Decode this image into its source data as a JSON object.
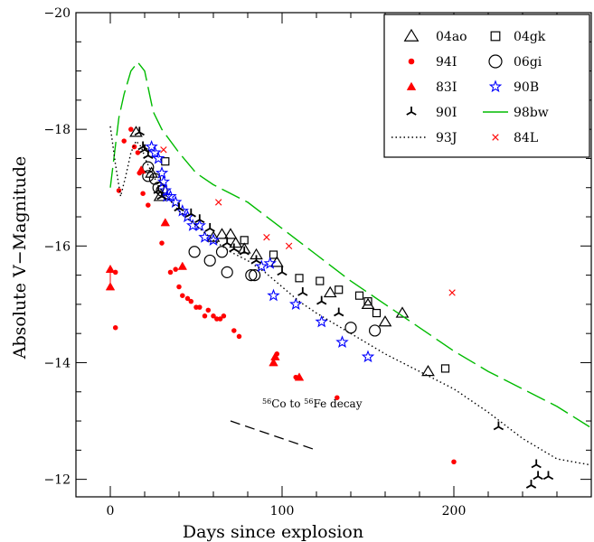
{
  "chart_data": {
    "type": "scatter",
    "xlabel": "Days since explosion",
    "ylabel": "Absolute V−Magnitude",
    "xlim": [
      -20,
      280
    ],
    "ylim": [
      -11.7,
      -20
    ],
    "y_inverted": true,
    "x_ticks": [
      0,
      100,
      200
    ],
    "x_tick_labels": [
      "0",
      "100",
      "200"
    ],
    "y_ticks": [
      -20,
      -18,
      -16,
      -14,
      -12
    ],
    "y_tick_labels": [
      "−20",
      "−18",
      "−16",
      "−14",
      "−12"
    ],
    "legend_position": "top-right",
    "annotation": {
      "text_parts": [
        "56",
        "Co to ",
        "56",
        "Fe decay"
      ],
      "x": 70,
      "y": -13.05,
      "line": [
        [
          70,
          -13.0
        ],
        [
          120,
          -12.5
        ]
      ]
    },
    "series": [
      {
        "name": "04ao",
        "marker": "triangle",
        "color": "#000000",
        "points": [
          [
            15,
            -17.95
          ],
          [
            24,
            -17.25
          ],
          [
            29,
            -16.85
          ],
          [
            60,
            -16.15
          ],
          [
            65,
            -16.2
          ],
          [
            70,
            -16.2
          ],
          [
            73,
            -16.05
          ],
          [
            78,
            -15.95
          ],
          [
            85,
            -15.85
          ],
          [
            97,
            -15.72
          ],
          [
            128,
            -15.2
          ],
          [
            150,
            -15.0
          ],
          [
            160,
            -14.7
          ],
          [
            170,
            -14.85
          ],
          [
            185,
            -13.85
          ]
        ]
      },
      {
        "name": "04gk",
        "marker": "square",
        "color": "#000000",
        "points": [
          [
            32,
            -17.45
          ],
          [
            78,
            -16.1
          ],
          [
            95,
            -15.85
          ],
          [
            110,
            -15.45
          ],
          [
            122,
            -15.4
          ],
          [
            133,
            -15.25
          ],
          [
            145,
            -15.15
          ],
          [
            150,
            -15.05
          ],
          [
            155,
            -14.85
          ],
          [
            195,
            -13.9
          ]
        ]
      },
      {
        "name": "94I",
        "marker": "dot",
        "color": "#ff0000",
        "points": [
          [
            3,
            -15.55
          ],
          [
            3,
            -14.6
          ],
          [
            5,
            -16.95
          ],
          [
            8,
            -17.8
          ],
          [
            12,
            -18.0
          ],
          [
            14,
            -17.7
          ],
          [
            16,
            -17.6
          ],
          [
            17,
            -17.25
          ],
          [
            19,
            -16.9
          ],
          [
            22,
            -16.7
          ],
          [
            30,
            -16.05
          ],
          [
            35,
            -15.55
          ],
          [
            38,
            -15.6
          ],
          [
            40,
            -15.3
          ],
          [
            42,
            -15.15
          ],
          [
            45,
            -15.1
          ],
          [
            47,
            -15.05
          ],
          [
            50,
            -14.95
          ],
          [
            52,
            -14.95
          ],
          [
            55,
            -14.8
          ],
          [
            57,
            -14.9
          ],
          [
            60,
            -14.8
          ],
          [
            62,
            -14.75
          ],
          [
            64,
            -14.75
          ],
          [
            66,
            -14.8
          ],
          [
            72,
            -14.55
          ],
          [
            75,
            -14.45
          ],
          [
            97,
            -14.15
          ],
          [
            108,
            -13.75
          ],
          [
            132,
            -13.4
          ],
          [
            200,
            -12.3
          ]
        ]
      },
      {
        "name": "06gi",
        "marker": "circle",
        "color": "#000000",
        "points": [
          [
            22,
            -17.2
          ],
          [
            22,
            -17.35
          ],
          [
            26,
            -17.15
          ],
          [
            28,
            -17.0
          ],
          [
            30,
            -16.95
          ],
          [
            49,
            -15.9
          ],
          [
            58,
            -15.75
          ],
          [
            65,
            -15.9
          ],
          [
            68,
            -15.55
          ],
          [
            82,
            -15.5
          ],
          [
            84,
            -15.5
          ],
          [
            140,
            -14.6
          ],
          [
            154,
            -14.55
          ]
        ]
      },
      {
        "name": "83I",
        "marker": "filled-triangle",
        "color": "#ff0000",
        "points": [
          [
            0,
            -15.6
          ],
          [
            0,
            -15.3
          ],
          [
            18,
            -17.3
          ],
          [
            32,
            -16.4
          ],
          [
            42,
            -15.65
          ],
          [
            95,
            -14.0
          ],
          [
            96,
            -14.1
          ],
          [
            110,
            -13.75
          ]
        ]
      },
      {
        "name": "90B",
        "marker": "star",
        "color": "#0000ff",
        "points": [
          [
            24,
            -17.7
          ],
          [
            26,
            -17.6
          ],
          [
            28,
            -17.5
          ],
          [
            30,
            -17.25
          ],
          [
            31,
            -17.1
          ],
          [
            32,
            -16.95
          ],
          [
            33,
            -16.85
          ],
          [
            35,
            -16.85
          ],
          [
            38,
            -16.75
          ],
          [
            42,
            -16.6
          ],
          [
            45,
            -16.5
          ],
          [
            48,
            -16.35
          ],
          [
            52,
            -16.35
          ],
          [
            55,
            -16.15
          ],
          [
            60,
            -16.1
          ],
          [
            88,
            -15.65
          ],
          [
            93,
            -15.7
          ],
          [
            95,
            -15.15
          ],
          [
            108,
            -15.0
          ],
          [
            123,
            -14.7
          ],
          [
            135,
            -14.35
          ],
          [
            150,
            -14.1
          ]
        ]
      },
      {
        "name": "90I",
        "marker": "tri",
        "color": "#000000",
        "points": [
          [
            17,
            -17.95
          ],
          [
            19,
            -17.7
          ],
          [
            20,
            -17.65
          ],
          [
            22,
            -17.55
          ],
          [
            28,
            -16.95
          ],
          [
            30,
            -16.85
          ],
          [
            40,
            -16.65
          ],
          [
            47,
            -16.55
          ],
          [
            52,
            -16.45
          ],
          [
            58,
            -16.3
          ],
          [
            68,
            -16.05
          ],
          [
            72,
            -15.95
          ],
          [
            78,
            -15.9
          ],
          [
            85,
            -15.75
          ],
          [
            100,
            -15.55
          ],
          [
            112,
            -15.2
          ],
          [
            123,
            -15.05
          ],
          [
            133,
            -14.85
          ],
          [
            226,
            -12.9
          ],
          [
            245,
            -11.9
          ],
          [
            248,
            -12.25
          ],
          [
            249,
            -12.05
          ],
          [
            255,
            -12.05
          ]
        ]
      },
      {
        "name": "98bw",
        "marker": "dashed-line",
        "color": "#00bb00",
        "points": [
          [
            0,
            -17.0
          ],
          [
            5,
            -18.2
          ],
          [
            8,
            -18.6
          ],
          [
            12,
            -19.0
          ],
          [
            16,
            -19.15
          ],
          [
            20,
            -19.0
          ],
          [
            25,
            -18.3
          ],
          [
            30,
            -18.0
          ],
          [
            40,
            -17.6
          ],
          [
            50,
            -17.25
          ],
          [
            60,
            -17.05
          ],
          [
            80,
            -16.75
          ],
          [
            100,
            -16.3
          ],
          [
            120,
            -15.85
          ],
          [
            140,
            -15.4
          ],
          [
            160,
            -15.0
          ],
          [
            180,
            -14.6
          ],
          [
            200,
            -14.2
          ],
          [
            220,
            -13.85
          ],
          [
            240,
            -13.55
          ],
          [
            260,
            -13.25
          ],
          [
            279,
            -12.9
          ]
        ]
      },
      {
        "name": "93J",
        "marker": "dotted-line",
        "color": "#000000",
        "points": [
          [
            0,
            -18.05
          ],
          [
            3,
            -17.4
          ],
          [
            6,
            -16.85
          ],
          [
            9,
            -17.2
          ],
          [
            12,
            -17.6
          ],
          [
            15,
            -17.8
          ],
          [
            18,
            -17.7
          ],
          [
            21,
            -17.45
          ],
          [
            25,
            -17.2
          ],
          [
            30,
            -16.95
          ],
          [
            40,
            -16.6
          ],
          [
            50,
            -16.35
          ],
          [
            60,
            -16.1
          ],
          [
            70,
            -15.9
          ],
          [
            80,
            -15.75
          ],
          [
            90,
            -15.55
          ],
          [
            100,
            -15.3
          ],
          [
            110,
            -15.05
          ],
          [
            120,
            -14.85
          ],
          [
            140,
            -14.5
          ],
          [
            160,
            -14.15
          ],
          [
            180,
            -13.85
          ],
          [
            200,
            -13.55
          ],
          [
            220,
            -13.15
          ],
          [
            240,
            -12.7
          ],
          [
            260,
            -12.35
          ],
          [
            279,
            -12.25
          ]
        ]
      },
      {
        "name": "84L",
        "marker": "cross",
        "color": "#ff0000",
        "points": [
          [
            31,
            -17.65
          ],
          [
            63,
            -16.75
          ],
          [
            91,
            -16.15
          ],
          [
            104,
            -16.0
          ],
          [
            199,
            -15.2
          ]
        ]
      }
    ]
  }
}
